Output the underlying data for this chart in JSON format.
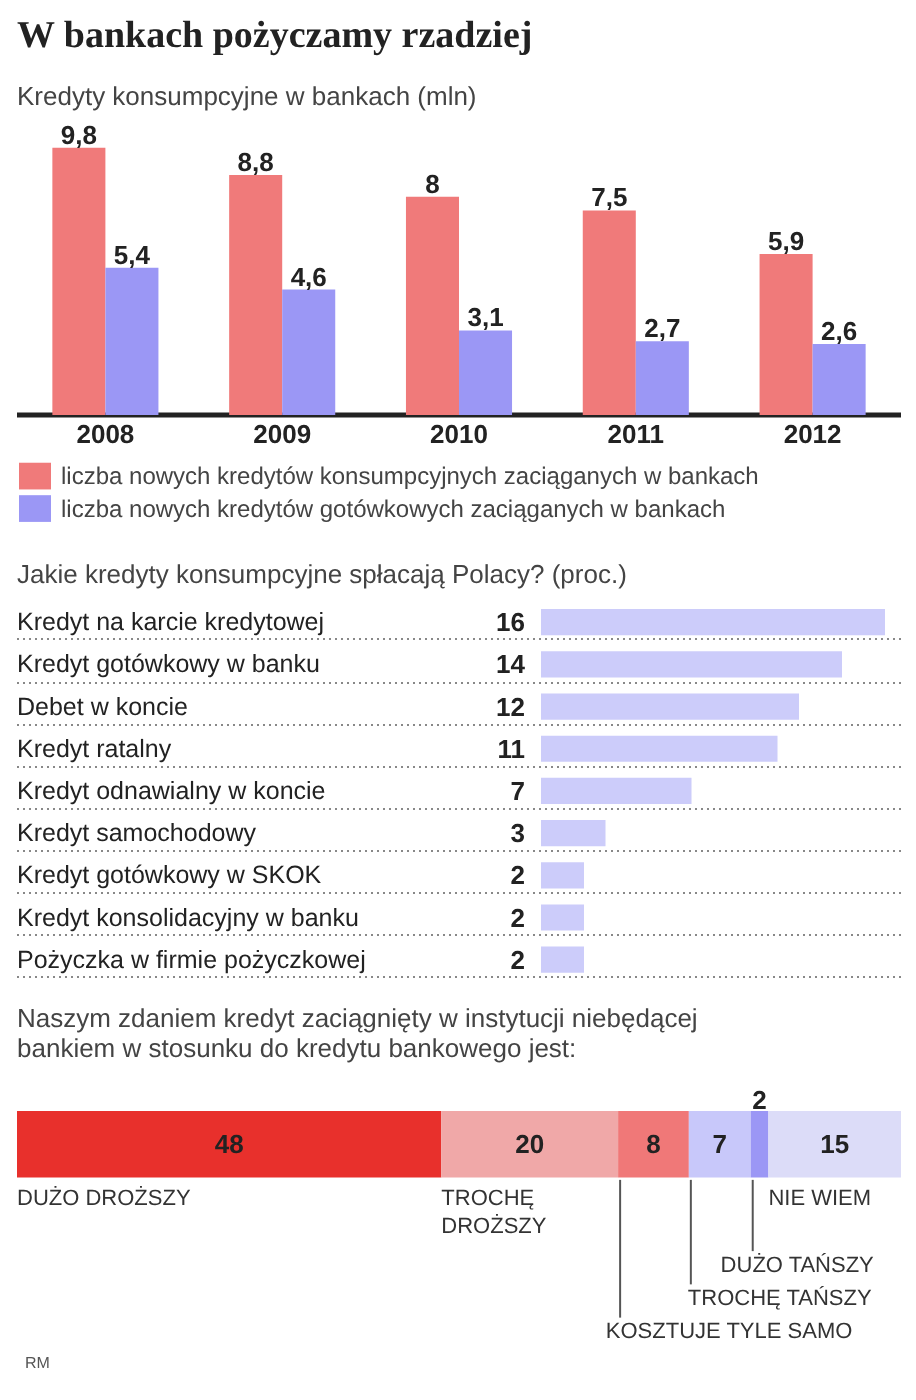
{
  "chart_data": [
    {
      "type": "bar",
      "title": "W bankach pożyczamy rzadziej",
      "subtitle": "Kredyty konsumpcyjne w bankach (mln)",
      "categories": [
        "2008",
        "2009",
        "2010",
        "2011",
        "2012"
      ],
      "series": [
        {
          "name": "liczba nowych kredytów konsumpcyjnych zaciąganych w bankach",
          "color": "#f07a7a",
          "values": [
            9.8,
            8.8,
            8,
            7.5,
            5.9
          ],
          "value_labels": [
            "9,8",
            "8,8",
            "8",
            "7,5",
            "5,9"
          ]
        },
        {
          "name": "liczba nowych kredytów gotówkowych zaciąganych w bankach",
          "color": "#9b97f5",
          "values": [
            5.4,
            4.6,
            3.1,
            2.7,
            2.6
          ],
          "value_labels": [
            "5,4",
            "4,6",
            "3,1",
            "2,7",
            "2,6"
          ]
        }
      ],
      "tick_labels": "x",
      "legend": "bottom"
    },
    {
      "type": "bar",
      "orientation": "horizontal",
      "title": "Jakie kredyty konsumpcyjne spłacają Polacy? (proc.)",
      "categories": [
        "Kredyt na karcie kredytowej",
        "Kredyt gotówkowy w banku",
        "Debet w koncie",
        "Kredyt ratalny",
        "Kredyt odnawialny w koncie",
        "Kredyt samochodowy",
        "Kredyt gotówkowy w SKOK",
        "Kredyt konsolidacyjny w banku",
        "Pożyczka w firmie pożyczkowej"
      ],
      "values": [
        16,
        14,
        12,
        11,
        7,
        3,
        2,
        2,
        2
      ],
      "color": "#ccccfa",
      "data_labels": true,
      "grid": "y"
    },
    {
      "type": "bar",
      "orientation": "horizontal",
      "stacked": true,
      "title": "Naszym zdaniem kredyt zaciągnięty w instytucji niebędącej bankiem w stosunku do kredytu bankowego jest:",
      "categories": [
        null
      ],
      "series": [
        {
          "name": "DUŻO DROŻSZY",
          "color": "#e8302c",
          "values": [
            48
          ]
        },
        {
          "name": "TROCHĘ DROŻSZY",
          "color": "#f0a8a8",
          "values": [
            20
          ]
        },
        {
          "name": "KOSZTUJE TYLE SAMO",
          "color": "#f07878",
          "values": [
            8
          ]
        },
        {
          "name": "TROCHĘ TAŃSZY",
          "color": "#c8c8fa",
          "values": [
            7
          ]
        },
        {
          "name": "DUŻO TAŃSZY",
          "color": "#9b97f5",
          "values": [
            2
          ]
        },
        {
          "name": "NIE WIEM",
          "color": "#dcdcf8",
          "values": [
            15
          ]
        }
      ],
      "data_labels": true,
      "annotations": [
        "RM"
      ]
    }
  ]
}
